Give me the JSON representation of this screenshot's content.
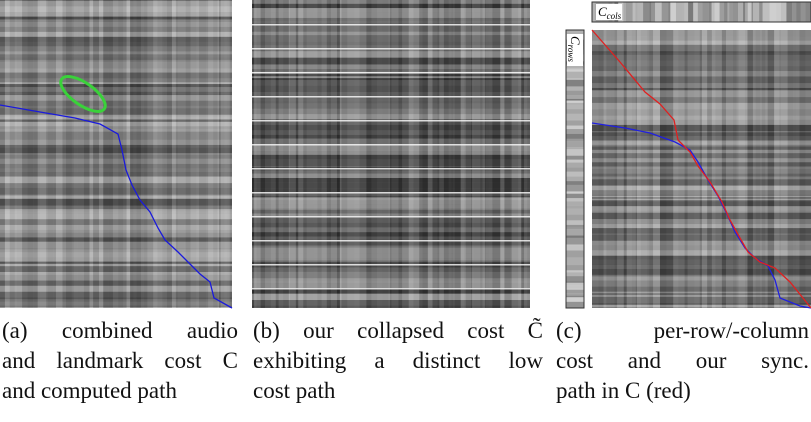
{
  "panels": [
    {
      "caption_lines": [
        "(a) combined audio",
        "and landmark cost C",
        "and computed path"
      ]
    },
    {
      "caption_lines": [
        "(b) our collapsed cost C̃",
        "exhibiting a distinct low",
        "cost path"
      ]
    },
    {
      "caption_lines": [
        "(c) per-row/-column",
        "cost and our sync.",
        "path in C (red)"
      ]
    }
  ],
  "labels": {
    "columns": {
      "symbol": "C",
      "subscript": "cols"
    },
    "rows": {
      "symbol": "C",
      "subscript": "rows"
    }
  }
}
